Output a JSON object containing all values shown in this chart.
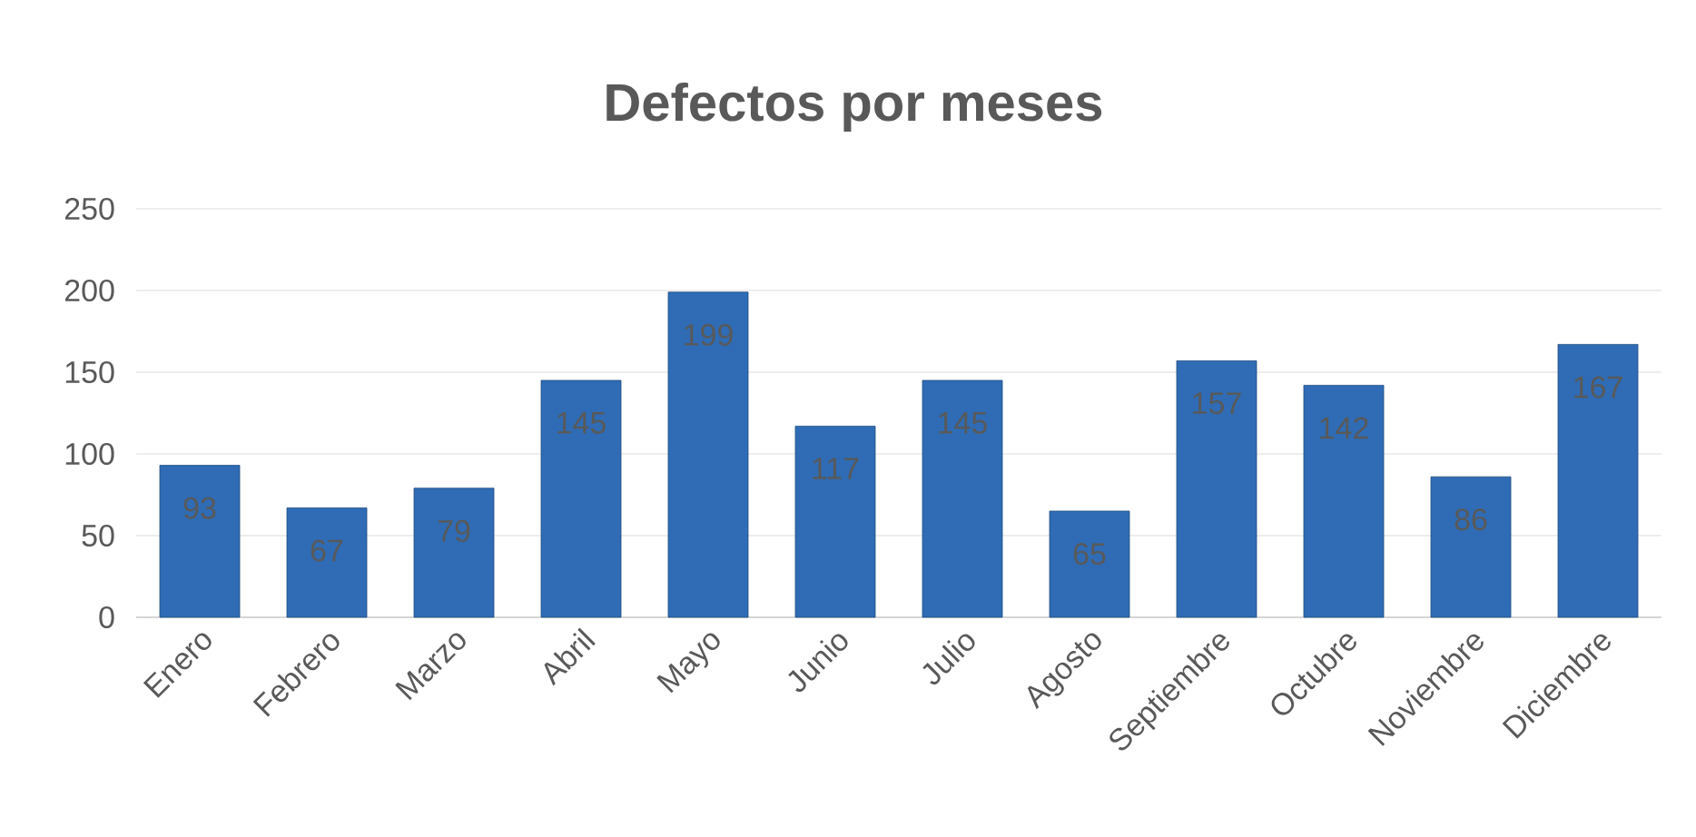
{
  "chart_data": {
    "type": "bar",
    "title": "Defectos por meses",
    "categories": [
      "Enero",
      "Febrero",
      "Marzo",
      "Abril",
      "Mayo",
      "Junio",
      "Julio",
      "Agosto",
      "Septiembre",
      "Octubre",
      "Noviembre",
      "Diciembre"
    ],
    "values": [
      93,
      67,
      79,
      145,
      199,
      117,
      145,
      65,
      157,
      142,
      86,
      167
    ],
    "color": "#2f6cb5",
    "ylim": [
      0,
      250
    ],
    "yticks": [
      0,
      50,
      100,
      150,
      200,
      250
    ],
    "grid": "y",
    "data_labels": true
  }
}
